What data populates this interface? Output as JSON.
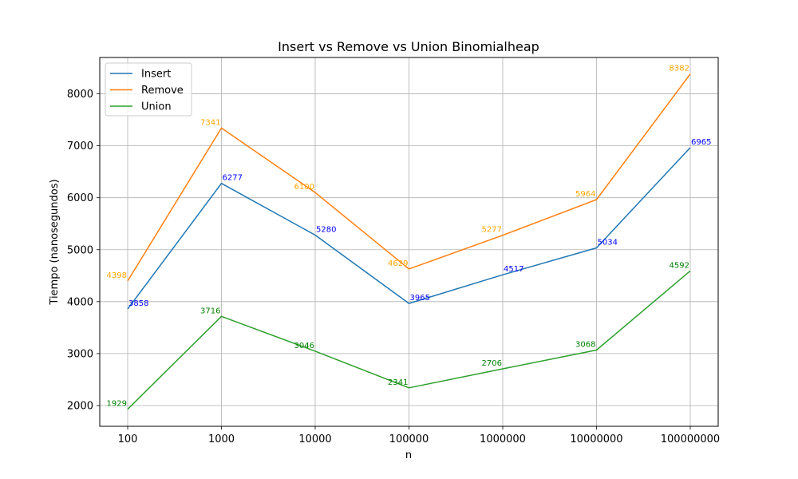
{
  "chart_data": {
    "type": "line",
    "title": "Insert vs Remove vs Union Binomialheap",
    "xlabel": "n",
    "ylabel": "Tiempo (nanosegundos)",
    "categories": [
      "100",
      "1000",
      "10000",
      "100000",
      "1000000",
      "10000000",
      "100000000"
    ],
    "ylim": [
      1600,
      8700
    ],
    "yticks": [
      2000,
      3000,
      4000,
      5000,
      6000,
      7000,
      8000
    ],
    "grid": true,
    "legend_position": "top-left",
    "series": [
      {
        "name": "Insert",
        "color": "#1f77b4",
        "label_color": "#0000ff",
        "values": [
          3858,
          6277,
          5280,
          3965,
          4517,
          5034,
          6965
        ]
      },
      {
        "name": "Remove",
        "color": "#ff7f0e",
        "label_color": "#ffa500",
        "values": [
          4398,
          7341,
          6100,
          4629,
          5277,
          5964,
          8382
        ]
      },
      {
        "name": "Union",
        "color": "#2ca02c",
        "label_color": "#008000",
        "values": [
          1929,
          3716,
          3046,
          2341,
          2706,
          3068,
          4592
        ]
      }
    ]
  }
}
